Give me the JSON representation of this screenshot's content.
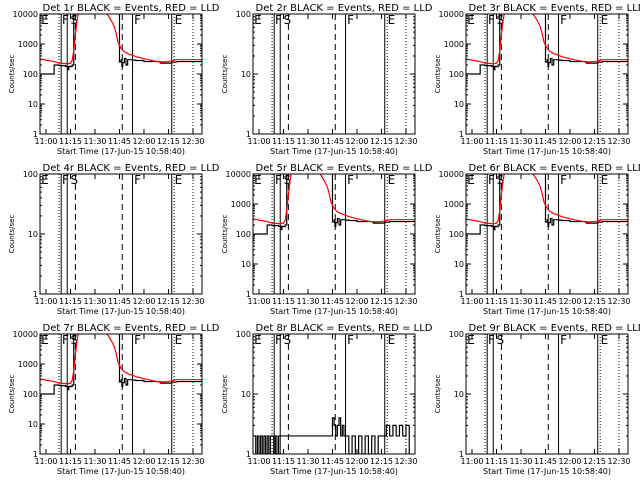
{
  "chart_data": {
    "type": "line",
    "layout": "3x3 grid",
    "xlabel": "Start Time (17-Jun-15 10:58:40)",
    "ylabel": "Counts/sec",
    "x_units": "minutes after 11:00",
    "xticks": [
      {
        "t": 0,
        "label": "11:00"
      },
      {
        "t": 15,
        "label": "11:15"
      },
      {
        "t": 30,
        "label": "11:30"
      },
      {
        "t": 45,
        "label": "11:45"
      },
      {
        "t": 60,
        "label": "12:00"
      },
      {
        "t": 75,
        "label": "12:15"
      },
      {
        "t": 90,
        "label": "12:30"
      }
    ],
    "xlim": [
      -3.7,
      95.5
    ],
    "markers": {
      "dotted": [
        8,
        78.5,
        90
      ],
      "solid": [
        9.3,
        13,
        53,
        77
      ],
      "dashed": [
        18,
        46.7
      ],
      "letters": [
        {
          "t": -3,
          "label": "E"
        },
        {
          "t": 9.8,
          "label": "F"
        },
        {
          "t": 15,
          "label": "S"
        },
        {
          "t": 54,
          "label": "F"
        },
        {
          "t": 78.8,
          "label": "E"
        }
      ]
    },
    "colors": {
      "events": "#000000",
      "lld": "#ff0000"
    },
    "panels": [
      {
        "title": "Det 1r BLACK = Events, RED = LLD",
        "ylim": [
          1,
          10000
        ],
        "yticks": [
          "1",
          "10",
          "100",
          "1000",
          "10000"
        ],
        "profile": "flare"
      },
      {
        "title": "Det 2r BLACK = Events, RED = LLD",
        "ylim": [
          1,
          100
        ],
        "yticks": [
          "1",
          "10",
          "100"
        ],
        "profile": "none"
      },
      {
        "title": "Det 3r BLACK = Events, RED = LLD",
        "ylim": [
          1,
          10000
        ],
        "yticks": [
          "1",
          "10",
          "100",
          "1000",
          "10000"
        ],
        "profile": "flare"
      },
      {
        "title": "Det 4r BLACK = Events, RED = LLD",
        "ylim": [
          1,
          100
        ],
        "yticks": [
          "1",
          "10",
          "100"
        ],
        "profile": "none"
      },
      {
        "title": "Det 5r BLACK = Events, RED = LLD",
        "ylim": [
          1,
          10000
        ],
        "yticks": [
          "1",
          "10",
          "100",
          "1000",
          "10000"
        ],
        "profile": "flare"
      },
      {
        "title": "Det 6r BLACK = Events, RED = LLD",
        "ylim": [
          1,
          10000
        ],
        "yticks": [
          "1",
          "10",
          "100",
          "1000",
          "10000"
        ],
        "profile": "flare"
      },
      {
        "title": "Det 7r BLACK = Events, RED = LLD",
        "ylim": [
          1,
          10000
        ],
        "yticks": [
          "1",
          "10",
          "100",
          "1000",
          "10000"
        ],
        "profile": "flare"
      },
      {
        "title": "Det 8r BLACK = Events, RED = LLD",
        "ylim": [
          1,
          100
        ],
        "yticks": [
          "1",
          "10",
          "100"
        ],
        "profile": "noise"
      },
      {
        "title": "Det 9r BLACK = Events, RED = LLD",
        "ylim": [
          1,
          100
        ],
        "yticks": [
          "1",
          "10",
          "100"
        ],
        "profile": "none"
      }
    ],
    "series_flare": {
      "lld": {
        "t": [
          -3.7,
          0,
          5,
          8,
          13,
          15,
          16,
          17,
          18,
          19,
          20,
          21,
          25,
          35,
          38,
          40,
          42,
          43,
          44,
          46,
          48,
          50,
          53,
          55,
          60,
          65,
          70,
          75,
          78,
          80,
          90,
          95.5
        ],
        "y": [
          320,
          290,
          260,
          230,
          220,
          230,
          280,
          600,
          2000,
          6000,
          12000,
          20000,
          20000,
          15000,
          9000,
          6000,
          3500,
          2200,
          1200,
          700,
          550,
          480,
          420,
          380,
          320,
          280,
          250,
          260,
          280,
          300,
          300,
          300
        ]
      },
      "events": {
        "t": [
          -3.7,
          0,
          4.9,
          5,
          8,
          12,
          13,
          13.5,
          14,
          15,
          16,
          17,
          44,
          45,
          46,
          46.5,
          47,
          48,
          49,
          50,
          53,
          55,
          60,
          70,
          77,
          80,
          90,
          95.5
        ],
        "y": [
          100,
          100,
          100,
          200,
          190,
          180,
          180,
          140,
          180,
          175,
          200,
          20000,
          20000,
          250,
          300,
          180,
          240,
          330,
          200,
          300,
          290,
          280,
          260,
          230,
          250,
          260,
          260,
          260
        ]
      }
    },
    "series_noise": {
      "events": {
        "t": [
          -3.7,
          -2,
          -1,
          0,
          1,
          2,
          3,
          4,
          5,
          6,
          7,
          8,
          9,
          10,
          11,
          12,
          13,
          44,
          45,
          46,
          47,
          48,
          49,
          50,
          51,
          52,
          53,
          55,
          57,
          59,
          61,
          63,
          65,
          67,
          69,
          71,
          73,
          75,
          77,
          78,
          80,
          82,
          84,
          86,
          88,
          90,
          92
        ],
        "y": [
          2,
          1,
          2,
          1,
          2,
          1,
          2,
          1,
          2,
          1,
          2,
          2,
          1,
          2,
          1,
          2,
          2,
          2,
          4,
          3,
          2,
          3,
          4,
          2,
          3,
          2,
          2,
          1,
          2,
          1,
          2,
          1,
          2,
          1,
          2,
          1,
          2,
          2,
          2,
          3,
          2,
          3,
          2,
          3,
          2,
          3,
          1
        ]
      }
    }
  }
}
